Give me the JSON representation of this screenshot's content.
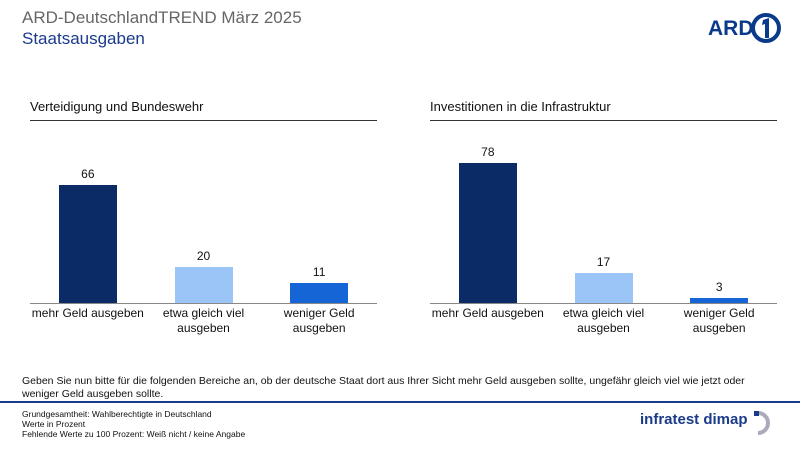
{
  "header": {
    "title": "ARD-DeutschlandTREND März 2025",
    "subtitle": "Staatsausgaben"
  },
  "logos": {
    "broadcaster": "ARD",
    "institute": "infratest dimap"
  },
  "question": "Geben Sie nun bitte für die folgenden Bereiche an, ob der deutsche Staat dort aus Ihrer Sicht mehr Geld ausgeben sollte, ungefähr gleich viel wie jetzt oder weniger Geld ausgeben sollte.",
  "footnotes": [
    "Grundgesamtheit: Wahlberechtigte in Deutschland",
    "Werte in Prozent",
    "Fehlende Werte zu 100 Prozent: Weiß nicht / keine Angabe"
  ],
  "chart_data": [
    {
      "type": "bar",
      "title": "Verteidigung und Bundeswehr",
      "categories": [
        "mehr Geld ausgeben",
        "etwa gleich viel ausgeben",
        "weniger Geld ausgeben"
      ],
      "values": [
        66,
        20,
        11
      ],
      "colors": [
        "#0a2b66",
        "#9cc5f7",
        "#1565d6"
      ]
    },
    {
      "type": "bar",
      "title": "Investitionen in die Infrastruktur",
      "categories": [
        "mehr Geld ausgeben",
        "etwa gleich viel ausgeben",
        "weniger Geld ausgeben"
      ],
      "values": [
        78,
        17,
        3
      ],
      "colors": [
        "#0a2b66",
        "#9cc5f7",
        "#1565d6"
      ]
    }
  ]
}
